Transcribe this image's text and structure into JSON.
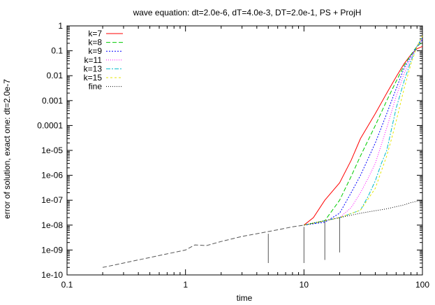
{
  "chart_data": {
    "type": "line",
    "title": "wave equation: dt=2.0e-6, dT=4.0e-3, DT=2.0e-1, PS + ProjH",
    "xlabel": "time",
    "ylabel": "error of solution, exact one: dt=2.0e-7",
    "xscale": "log",
    "yscale": "log",
    "xlim": [
      0.1,
      100
    ],
    "ylim": [
      1e-10,
      1
    ],
    "xticks": [
      0.1,
      1,
      10,
      100
    ],
    "xtick_labels": [
      "0.1",
      "1",
      "10",
      "100"
    ],
    "yticks": [
      1e-10,
      1e-09,
      1e-08,
      1e-07,
      1e-06,
      1e-05,
      0.0001,
      0.001,
      0.01,
      0.1,
      1
    ],
    "ytick_labels": [
      "1e-10",
      "1e-09",
      "1e-08",
      "1e-07",
      "1e-06",
      "1e-05",
      "0.0001",
      "0.001",
      "0.01",
      "0.1",
      "1"
    ],
    "grid": false,
    "legend_position": "top-left",
    "common_curve": {
      "x": [
        0.2,
        0.3,
        0.5,
        0.7,
        1.0,
        1.2,
        1.5,
        2.0,
        3.0,
        4.0,
        5.0,
        6.0,
        7.0,
        8.0,
        10.0
      ],
      "y": [
        2e-10,
        3e-10,
        5e-10,
        7e-10,
        1e-09,
        1.6e-09,
        1.5e-09,
        2.2e-09,
        3.5e-09,
        4.5e-09,
        5.5e-09,
        6.5e-09,
        7.5e-09,
        8.5e-09,
        1e-08
      ]
    },
    "dips": [
      {
        "x": 5.0,
        "y": 3e-10
      },
      {
        "x": 10.0,
        "y": 3e-10
      },
      {
        "x": 15.0,
        "y": 4e-10
      },
      {
        "x": 20.0,
        "y": 8e-10
      }
    ],
    "series": [
      {
        "name": "k=7",
        "color": "#ff0000",
        "dash": "",
        "x": [
          10,
          12,
          15,
          20,
          25,
          30,
          40,
          50,
          60,
          70,
          80,
          90,
          100
        ],
        "y": [
          1e-08,
          2e-08,
          1e-07,
          5e-07,
          4e-06,
          3e-05,
          0.0003,
          0.002,
          0.009,
          0.03,
          0.07,
          0.12,
          0.15
        ]
      },
      {
        "name": "k=8",
        "color": "#00cc00",
        "dash": "6 3",
        "x": [
          10,
          15,
          20,
          25,
          30,
          40,
          50,
          60,
          70,
          80,
          90,
          100
        ],
        "y": [
          1e-08,
          1.5e-08,
          1e-07,
          9e-07,
          6e-06,
          0.0001,
          0.001,
          0.006,
          0.025,
          0.07,
          0.15,
          0.22
        ]
      },
      {
        "name": "k=9",
        "color": "#0000ff",
        "dash": "2 2",
        "x": [
          10,
          15,
          20,
          25,
          30,
          40,
          50,
          60,
          70,
          80,
          90,
          100
        ],
        "y": [
          1e-08,
          1.3e-08,
          3e-08,
          2e-07,
          1e-06,
          2e-05,
          0.0003,
          0.003,
          0.02,
          0.06,
          0.15,
          0.28
        ]
      },
      {
        "name": "k=11",
        "color": "#ff00ff",
        "dash": "1 2",
        "x": [
          10,
          20,
          25,
          30,
          35,
          40,
          50,
          60,
          70,
          80,
          90,
          100
        ],
        "y": [
          1e-08,
          2e-08,
          5e-08,
          2e-07,
          8e-07,
          3e-06,
          8e-05,
          0.0015,
          0.012,
          0.05,
          0.15,
          0.3
        ]
      },
      {
        "name": "k=13",
        "color": "#00bbcc",
        "dash": "6 2 2 2",
        "x": [
          10,
          20,
          30,
          35,
          40,
          45,
          50,
          60,
          70,
          80,
          90,
          100
        ],
        "y": [
          1e-08,
          2e-08,
          4e-08,
          1.5e-07,
          6e-07,
          3e-06,
          1e-05,
          0.0005,
          0.006,
          0.04,
          0.15,
          0.35
        ]
      },
      {
        "name": "k=15",
        "color": "#e6e600",
        "dash": "3 3",
        "x": [
          10,
          20,
          30,
          40,
          45,
          50,
          55,
          60,
          70,
          80,
          90,
          100
        ],
        "y": [
          1e-08,
          2e-08,
          4e-08,
          3e-07,
          1.5e-06,
          6e-06,
          3e-05,
          0.00015,
          0.003,
          0.03,
          0.15,
          0.4
        ]
      },
      {
        "name": "fine",
        "color": "#000000",
        "dash": "1 2",
        "x": [
          10,
          20,
          30,
          40,
          50,
          60,
          70,
          80,
          90,
          100
        ],
        "y": [
          1e-08,
          2e-08,
          3e-08,
          3.8e-08,
          4.5e-08,
          5.5e-08,
          6.5e-08,
          8e-08,
          9e-08,
          1e-07
        ]
      }
    ]
  }
}
